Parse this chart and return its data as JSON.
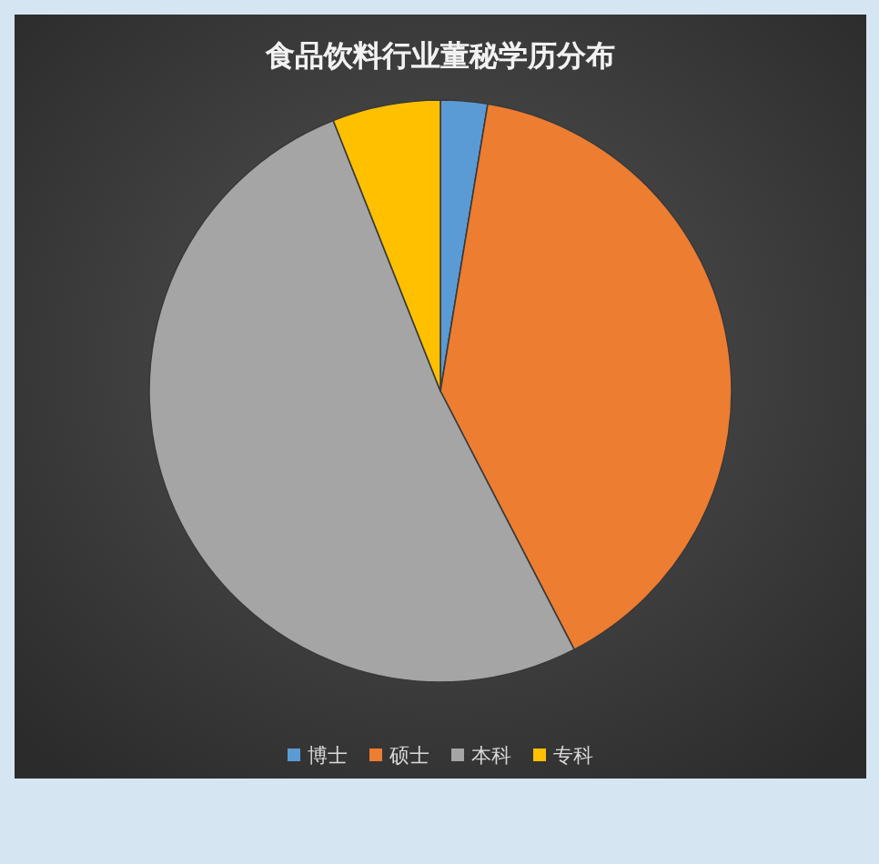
{
  "chart_data": {
    "type": "pie",
    "title": "食品饮料行业董秘学历分布",
    "categories": [
      "博士",
      "硕士",
      "本科",
      "专科"
    ],
    "values": [
      2.6,
      39.8,
      51.6,
      6.0
    ],
    "colors": [
      "#5b9bd5",
      "#ed7d31",
      "#a5a5a5",
      "#ffc000"
    ],
    "legend": "bottom"
  }
}
